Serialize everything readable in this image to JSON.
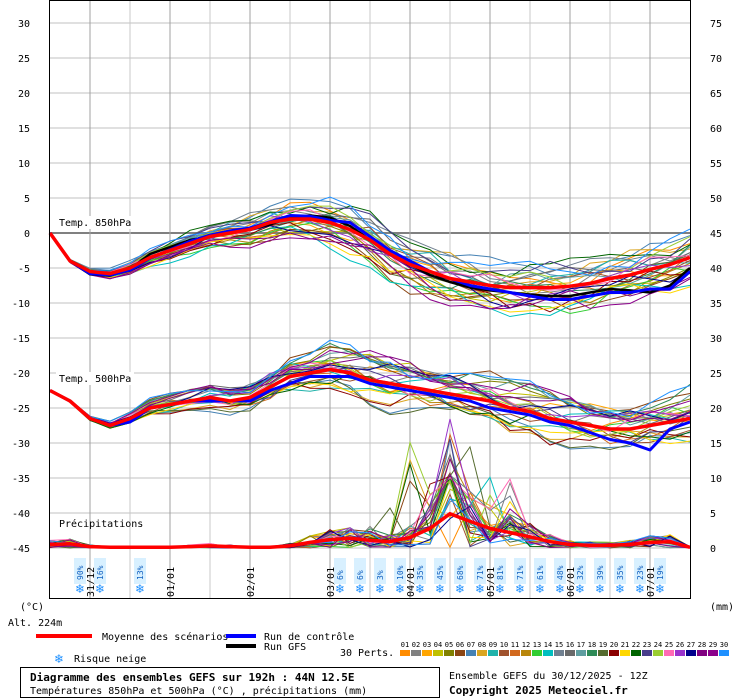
{
  "chart_data": {
    "type": "line",
    "title": "Diagramme des ensembles GEFS sur 192h : 44N 12.5E",
    "subtitle": "Températures 850hPa et 500hPa (°C) , précipitations (mm)",
    "left_axis": {
      "unit_label": "(°C)",
      "range": [
        -45,
        30
      ],
      "ticks": [
        30,
        25,
        20,
        15,
        10,
        5,
        0,
        -5,
        -10,
        -15,
        -20,
        -25,
        -30,
        -35,
        -40,
        -45
      ]
    },
    "right_axis": {
      "unit_label": "(mm)",
      "range": [
        0,
        75
      ],
      "ticks": [
        75,
        70,
        65,
        60,
        55,
        50,
        45,
        40,
        35,
        30,
        25,
        20,
        15,
        10,
        5,
        0
      ]
    },
    "x_axis": {
      "range_hours": [
        0,
        192
      ],
      "date_ticks": [
        {
          "label": "31/12",
          "hour": 12
        },
        {
          "label": "01/01",
          "hour": 36
        },
        {
          "label": "02/01",
          "hour": 60
        },
        {
          "label": "03/01",
          "hour": 84
        },
        {
          "label": "04/01",
          "hour": 108
        },
        {
          "label": "05/01",
          "hour": 132
        },
        {
          "label": "06/01",
          "hour": 156
        },
        {
          "label": "07/01",
          "hour": 180
        }
      ]
    },
    "altitude_label": "Alt. 224m",
    "panel_labels": {
      "t850": "Temp. 850hPa",
      "t500": "Temp. 500hPa",
      "precip": "Précipitations"
    },
    "hours": [
      0,
      6,
      12,
      18,
      24,
      30,
      36,
      42,
      48,
      54,
      60,
      66,
      72,
      78,
      84,
      90,
      96,
      102,
      108,
      114,
      120,
      126,
      132,
      138,
      144,
      150,
      156,
      162,
      168,
      174,
      180,
      186,
      192
    ],
    "series": [
      {
        "name": "Moyenne des scénarios",
        "color": "#ff0000",
        "t850": [
          0,
          -4,
          -5.5,
          -5.8,
          -5,
          -3.5,
          -2.5,
          -1.5,
          -0.5,
          0,
          0.5,
          1.5,
          2,
          2,
          1.5,
          0.5,
          -1,
          -3,
          -4.5,
          -5.5,
          -6.5,
          -7,
          -7.5,
          -7.8,
          -7.8,
          -7.8,
          -7.6,
          -7.2,
          -6.5,
          -6,
          -5.2,
          -4.5,
          -3.5
        ],
        "t500": [
          -22.5,
          -24,
          -26.5,
          -27.5,
          -26.5,
          -25,
          -24.5,
          -24,
          -23.5,
          -24,
          -23.5,
          -22,
          -20.5,
          -20,
          -19.5,
          -20,
          -21,
          -21.5,
          -22,
          -22.5,
          -23,
          -23.5,
          -24,
          -25,
          -25.5,
          -26.5,
          -27,
          -27.5,
          -28,
          -28,
          -27.5,
          -27,
          -26.5
        ],
        "precip": [
          0.5,
          0.6,
          0.2,
          0.1,
          0.1,
          0.1,
          0.1,
          0.2,
          0.3,
          0.2,
          0.1,
          0.1,
          0.3,
          0.8,
          1.2,
          1.4,
          1.1,
          0.9,
          1.5,
          2.8,
          4.9,
          3.8,
          2.8,
          2.2,
          1.6,
          0.9,
          0.5,
          0.4,
          0.4,
          0.5,
          0.8,
          0.9,
          0.1
        ]
      },
      {
        "name": "Run de contrôle",
        "color": "#0000ff",
        "t850": [
          0,
          -4,
          -5.8,
          -6,
          -5.3,
          -3.6,
          -2.4,
          -1.2,
          -0.3,
          0.3,
          0.7,
          1.6,
          2.5,
          2.4,
          1.8,
          1.5,
          -0.5,
          -2.5,
          -4,
          -5.5,
          -6.5,
          -7.5,
          -8,
          -8.5,
          -9,
          -9.5,
          -9.5,
          -9,
          -8.5,
          -8.5,
          -8,
          -8,
          -5.5
        ],
        "t500": [
          -22.5,
          -24,
          -26.5,
          -27.5,
          -27,
          -25,
          -24.5,
          -24,
          -24,
          -24,
          -24,
          -22.5,
          -21.5,
          -20.5,
          -20.5,
          -20.5,
          -21.5,
          -22,
          -22.5,
          -23,
          -23.5,
          -24,
          -25,
          -25.5,
          -26,
          -27,
          -27.5,
          -28.5,
          -29.5,
          -30,
          -31,
          -28,
          -27
        ]
      },
      {
        "name": "Run GFS",
        "color": "#000000",
        "t850": [
          0,
          -4,
          -5.9,
          -6.1,
          -5.2,
          -3,
          -2,
          -1,
          -0.5,
          0.3,
          0.6,
          1.2,
          2.2,
          2.5,
          2.2,
          1,
          -1,
          -3,
          -4.5,
          -6,
          -7,
          -7.8,
          -8.2,
          -8.5,
          -8.8,
          -9,
          -9,
          -8.5,
          -8,
          -8.2,
          -8.5,
          -7.5,
          -5
        ]
      },
      {
        "name": "Risque neige"
      }
    ],
    "snow_risk": [
      {
        "hour": 9,
        "pct": "90%"
      },
      {
        "hour": 15,
        "pct": "16%"
      },
      {
        "hour": 27,
        "pct": "13%"
      },
      {
        "hour": 87,
        "pct": "6%"
      },
      {
        "hour": 93,
        "pct": "6%"
      },
      {
        "hour": 99,
        "pct": "3%"
      },
      {
        "hour": 105,
        "pct": "10%"
      },
      {
        "hour": 111,
        "pct": "35%"
      },
      {
        "hour": 117,
        "pct": "45%"
      },
      {
        "hour": 123,
        "pct": "68%"
      },
      {
        "hour": 129,
        "pct": "71%"
      },
      {
        "hour": 135,
        "pct": "81%"
      },
      {
        "hour": 141,
        "pct": "71%"
      },
      {
        "hour": 147,
        "pct": "61%"
      },
      {
        "hour": 153,
        "pct": "48%"
      },
      {
        "hour": 159,
        "pct": "32%"
      },
      {
        "hour": 165,
        "pct": "39%"
      },
      {
        "hour": 171,
        "pct": "35%"
      },
      {
        "hour": 177,
        "pct": "23%"
      },
      {
        "hour": 183,
        "pct": "19%"
      }
    ],
    "perturbations_label": "30 Perts.",
    "perturbations": [
      {
        "id": "01",
        "color": "#ff8c00"
      },
      {
        "id": "02",
        "color": "#808080"
      },
      {
        "id": "03",
        "color": "#ffa500"
      },
      {
        "id": "04",
        "color": "#c0c000"
      },
      {
        "id": "05",
        "color": "#808000"
      },
      {
        "id": "06",
        "color": "#8b4513"
      },
      {
        "id": "07",
        "color": "#4682b4"
      },
      {
        "id": "08",
        "color": "#daa520"
      },
      {
        "id": "09",
        "color": "#20b2aa"
      },
      {
        "id": "10",
        "color": "#a0522d"
      },
      {
        "id": "11",
        "color": "#d2691e"
      },
      {
        "id": "12",
        "color": "#b8860b"
      },
      {
        "id": "13",
        "color": "#32cd32"
      },
      {
        "id": "14",
        "color": "#00bfbf"
      },
      {
        "id": "15",
        "color": "#708090"
      },
      {
        "id": "16",
        "color": "#696969"
      },
      {
        "id": "17",
        "color": "#5f9ea0"
      },
      {
        "id": "18",
        "color": "#2e8b57"
      },
      {
        "id": "19",
        "color": "#556b2f"
      },
      {
        "id": "20",
        "color": "#8b0000"
      },
      {
        "id": "21",
        "color": "#ffd700"
      },
      {
        "id": "22",
        "color": "#006400"
      },
      {
        "id": "23",
        "color": "#483d8b"
      },
      {
        "id": "24",
        "color": "#9acd32"
      },
      {
        "id": "25",
        "color": "#ff69b4"
      },
      {
        "id": "26",
        "color": "#9932cc"
      },
      {
        "id": "27",
        "color": "#00008b"
      },
      {
        "id": "28",
        "color": "#800080"
      },
      {
        "id": "29",
        "color": "#8b008b"
      },
      {
        "id": "30",
        "color": "#1e90ff"
      }
    ],
    "run_info": "Ensemble GEFS du 30/12/2025 - 12Z",
    "copyright": "Copyright 2025 Meteociel.fr",
    "grid": true
  }
}
